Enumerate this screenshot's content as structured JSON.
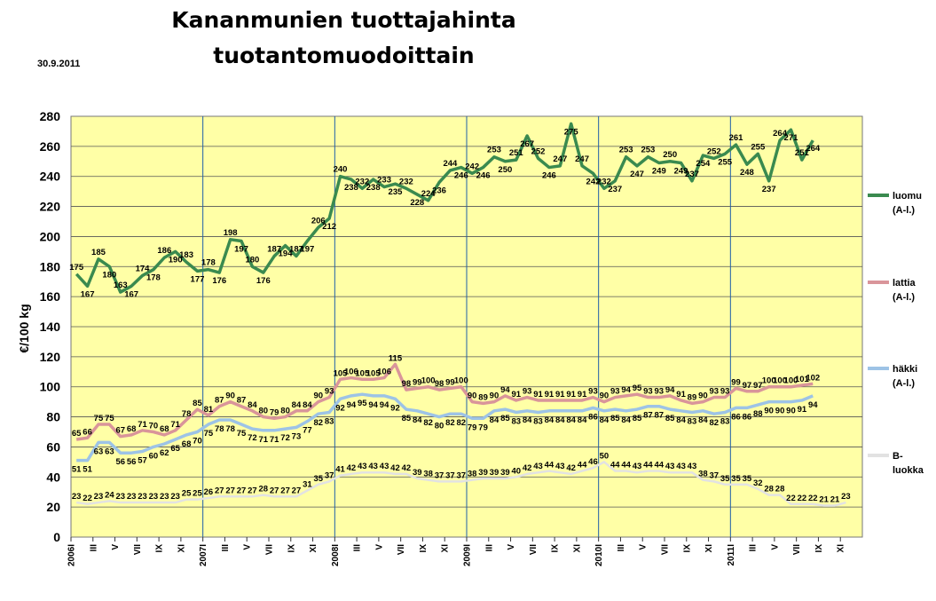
{
  "title": {
    "line1": "Kananmunien tuottajahinta",
    "line2": "tuotantomuodoittain"
  },
  "date": "30.9.2011",
  "chart_data": {
    "type": "line",
    "title": "Kananmunien tuottajahinta tuotantomuodoittain",
    "ylabel": "€/100 kg",
    "xlabel": "",
    "ylim": [
      0,
      280
    ],
    "yticks": [
      0,
      20,
      40,
      60,
      80,
      100,
      120,
      140,
      160,
      180,
      200,
      220,
      240,
      260,
      280
    ],
    "grid": true,
    "legend_position": "right",
    "x_tick_labels": [
      "2006I",
      "III",
      "V",
      "VII",
      "IX",
      "XI",
      "2007I",
      "III",
      "V",
      "VII",
      "IX",
      "XI",
      "2008I",
      "III",
      "V",
      "VII",
      "IX",
      "XI",
      "2009I",
      "III",
      "V",
      "VII",
      "IX",
      "XI",
      "2010I",
      "III",
      "V",
      "VII",
      "IX",
      "XI",
      "2011I",
      "III",
      "V",
      "VII",
      "IX",
      "XI"
    ],
    "x_months": 72,
    "series": [
      {
        "name": "luomu (A-l.)",
        "color": "#3a8a4f",
        "width": 3.5,
        "labelPos": "mixed",
        "values": [
          175,
          167,
          185,
          180,
          163,
          167,
          174,
          178,
          186,
          190,
          183,
          177,
          178,
          176,
          198,
          197,
          180,
          176,
          187,
          194,
          187,
          197,
          206,
          212,
          240,
          238,
          232,
          238,
          233,
          235,
          232,
          228,
          224,
          236,
          244,
          246,
          242,
          246,
          253,
          250,
          251,
          267,
          252,
          246,
          247,
          275,
          247,
          242,
          232,
          237,
          253,
          247,
          253,
          249,
          250,
          249,
          237,
          254,
          252,
          255,
          261,
          248,
          255,
          237,
          264,
          271,
          251,
          264,
          null,
          null,
          null,
          null
        ]
      },
      {
        "name": "lattia (A-l.)",
        "color": "#d9959a",
        "width": 3.5,
        "labelPos": "above",
        "values": [
          65,
          66,
          75,
          75,
          67,
          68,
          71,
          70,
          68,
          71,
          78,
          85,
          81,
          87,
          90,
          87,
          84,
          80,
          79,
          80,
          84,
          84,
          90,
          93,
          105,
          106,
          105,
          105,
          106,
          115,
          98,
          99,
          100,
          98,
          99,
          100,
          90,
          89,
          90,
          94,
          91,
          93,
          91,
          91,
          91,
          91,
          91,
          93,
          90,
          93,
          94,
          95,
          93,
          93,
          94,
          91,
          89,
          90,
          93,
          93,
          99,
          97,
          97,
          100,
          100,
          100,
          101,
          102,
          null,
          null,
          null,
          null
        ]
      },
      {
        "name": "häkki (A-l.)",
        "color": "#9dc3e6",
        "width": 3.5,
        "labelPos": "below",
        "values": [
          51,
          51,
          63,
          63,
          56,
          56,
          57,
          60,
          62,
          65,
          68,
          70,
          75,
          78,
          78,
          75,
          72,
          71,
          71,
          72,
          73,
          77,
          82,
          83,
          92,
          94,
          95,
          94,
          94,
          92,
          85,
          84,
          82,
          80,
          82,
          82,
          79,
          79,
          84,
          85,
          83,
          84,
          83,
          84,
          84,
          84,
          84,
          86,
          84,
          85,
          84,
          85,
          87,
          87,
          85,
          84,
          83,
          84,
          82,
          83,
          86,
          86,
          88,
          90,
          90,
          90,
          91,
          94,
          null,
          null,
          null,
          null
        ]
      },
      {
        "name": "B-luokka",
        "color": "#e2e2e2",
        "width": 2.5,
        "labelPos": "above",
        "values": [
          23,
          22,
          23,
          24,
          23,
          23,
          23,
          23,
          23,
          23,
          25,
          25,
          26,
          27,
          27,
          27,
          27,
          28,
          27,
          27,
          27,
          31,
          35,
          37,
          41,
          42,
          43,
          43,
          43,
          42,
          42,
          39,
          38,
          37,
          37,
          37,
          38,
          39,
          39,
          39,
          40,
          42,
          43,
          44,
          43,
          42,
          44,
          46,
          50,
          44,
          44,
          43,
          44,
          44,
          43,
          43,
          43,
          38,
          37,
          35,
          35,
          35,
          32,
          28,
          28,
          22,
          22,
          22,
          21,
          21,
          23,
          null
        ]
      }
    ]
  }
}
